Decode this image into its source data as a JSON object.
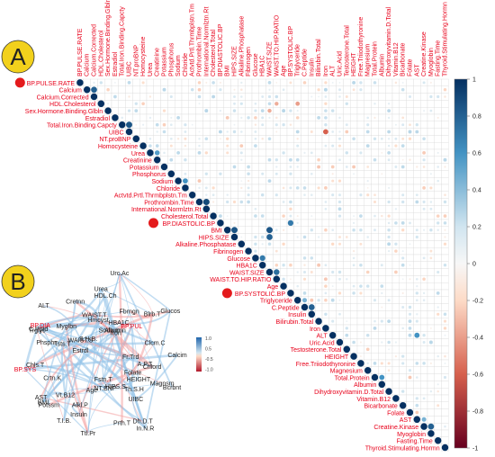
{
  "panel_a_label": "A",
  "panel_b_label": "B",
  "colors": {
    "text_red": "#e8001a",
    "positive": "#053061",
    "negative": "#67001f",
    "panel_badge": "#f2d11c",
    "highlight_dot": "#e41a1c",
    "grid": "#cccccc"
  },
  "variables": [
    "BP.PULSE.RATE",
    "Calcium",
    "Calcium.Corrected",
    "HDL.Cholesterol",
    "Sex.Hormone.Binding.Glbln",
    "Estradiol",
    "Total.Iron.Binding.Capcty",
    "UIBC",
    "NT.proBNP",
    "Homocysteine",
    "Urea",
    "Creatinine",
    "Potassium",
    "Phosphorus",
    "Sodium",
    "Chloride",
    "Actvtd.Prtl.Thrmbplstn.Tm",
    "Prothrombin.Time",
    "International.Normlztn.Rt",
    "Cholesterol.Total",
    "BP.DIASTOLIC.BP",
    "BMI",
    "HIPS.SIZE",
    "Alkaline.Phosphatase",
    "Fibrinogen",
    "Glucose",
    "HBA1C",
    "WAIST.SIZE",
    "WAIST.TO.HIP.RATIO",
    "Age",
    "BP.SYSTOLIC.BP",
    "Triglyceride",
    "C.Peptide",
    "Insulin",
    "Bilirubin.Total",
    "Iron",
    "ALT",
    "Uric.Acid",
    "Testosterone.Total",
    "HEIGHT",
    "Free.Triiodothyronine",
    "Magnesium",
    "Total.Protein",
    "Albumin",
    "Dihydroxyvitamin.D.Total",
    "Vitamin.B12",
    "Bicarbonate",
    "Folate",
    "AST",
    "Creatine.Kinase",
    "Myoglobin",
    "Fasting.Time",
    "Thyroid.Stimulating.Hormn"
  ],
  "highlighted_variables": [
    "BP.PULSE.RATE",
    "BP.DIASTOLIC.BP",
    "BP.SYSTOLIC.BP"
  ],
  "colorbar_ticks": [
    "1",
    "0.8",
    "0.6",
    "0.4",
    "0.2",
    "0",
    "-0.2",
    "-0.4",
    "-0.6",
    "-0.8",
    "-1"
  ],
  "correlation_strong_pairs": [
    {
      "a": "Calcium",
      "b": "Calcium.Corrected",
      "r": 0.8
    },
    {
      "a": "Total.Iron.Binding.Capcty",
      "b": "UIBC",
      "r": 0.85
    },
    {
      "a": "Urea",
      "b": "Creatinine",
      "r": 0.55
    },
    {
      "a": "Sodium",
      "b": "Chloride",
      "r": 0.6
    },
    {
      "a": "Prothrombin.Time",
      "b": "International.Normlztn.Rt",
      "r": 0.9
    },
    {
      "a": "BMI",
      "b": "HIPS.SIZE",
      "r": 0.85
    },
    {
      "a": "BMI",
      "b": "WAIST.SIZE",
      "r": 0.85
    },
    {
      "a": "HIPS.SIZE",
      "b": "WAIST.SIZE",
      "r": 0.8
    },
    {
      "a": "WAIST.SIZE",
      "b": "WAIST.TO.HIP.RATIO",
      "r": 0.75
    },
    {
      "a": "Glucose",
      "b": "HBA1C",
      "r": 0.7
    },
    {
      "a": "BP.DIASTOLIC.BP",
      "b": "BP.SYSTOLIC.BP",
      "r": 0.7
    },
    {
      "a": "C.Peptide",
      "b": "Insulin",
      "r": 0.8
    },
    {
      "a": "Triglyceride",
      "b": "C.Peptide",
      "r": 0.45
    },
    {
      "a": "Total.Protein",
      "b": "Albumin",
      "r": 0.6
    },
    {
      "a": "AST",
      "b": "ALT",
      "r": 0.6
    },
    {
      "a": "Creatine.Kinase",
      "b": "Myoglobin",
      "r": 0.8
    },
    {
      "a": "AST",
      "b": "Creatine.Kinase",
      "r": 0.45
    },
    {
      "a": "Iron",
      "b": "UIBC",
      "r": -0.6
    },
    {
      "a": "Sex.Hormone.Binding.Glbln",
      "b": "WAIST.SIZE",
      "r": -0.35
    },
    {
      "a": "HDL.Cholesterol",
      "b": "Triglyceride",
      "r": -0.4
    },
    {
      "a": "HDL.Cholesterol",
      "b": "WAIST.TO.HIP.RATIO",
      "r": -0.35
    }
  ],
  "network_nodes": [
    {
      "label": "Albumn"
    },
    {
      "label": "Sodium"
    },
    {
      "label": "Fbrngn"
    },
    {
      "label": "HBA1C."
    },
    {
      "label": "Iron"
    },
    {
      "label": "BP.PUL"
    },
    {
      "label": "Glucos"
    },
    {
      "label": "Blrb.T"
    },
    {
      "label": "Clcm.C"
    },
    {
      "label": "Calcim"
    },
    {
      "label": "Fr.Trd"
    },
    {
      "label": "A.P.T."
    },
    {
      "label": "Chlord"
    },
    {
      "label": "Bcrbnt"
    },
    {
      "label": "HEIGHT"
    },
    {
      "label": "Magnsm"
    },
    {
      "label": "Th.S.H"
    },
    {
      "label": "Folate"
    },
    {
      "label": "In.N.R"
    },
    {
      "label": "HIPS.S"
    },
    {
      "label": "UIBC"
    },
    {
      "label": "Dh.D.T"
    },
    {
      "label": "Prth.T"
    },
    {
      "label": "NT.BNP"
    },
    {
      "label": "Ttl.Pr"
    },
    {
      "label": "Fstn.T"
    },
    {
      "label": "Age"
    },
    {
      "label": "T.I.B."
    },
    {
      "label": "Insuln"
    },
    {
      "label": "Alkl.P"
    },
    {
      "label": "BMI"
    },
    {
      "label": "Potssm"
    },
    {
      "label": "AST"
    },
    {
      "label": "Vt.B12"
    },
    {
      "label": "Chls.T"
    },
    {
      "label": "BP.SYS"
    },
    {
      "label": "Crtn.K"
    },
    {
      "label": "Tsts.T"
    },
    {
      "label": "Phsphr"
    },
    {
      "label": "C.Pptd"
    },
    {
      "label": "Trglyc"
    },
    {
      "label": "Estrdl"
    },
    {
      "label": "BP.DIA"
    },
    {
      "label": "WAIST.S"
    },
    {
      "label": "Myglbn"
    },
    {
      "label": "ALT"
    },
    {
      "label": "S.H.B."
    },
    {
      "label": "Hmcyst"
    },
    {
      "label": "Cretnn"
    },
    {
      "label": "HDL.Ch"
    },
    {
      "label": "WAIST.T"
    },
    {
      "label": "Urea"
    },
    {
      "label": "Urc.Ac"
    }
  ],
  "network_legend_ticks": [
    "1.0",
    "0.5",
    "-0.5",
    "-1.0"
  ]
}
